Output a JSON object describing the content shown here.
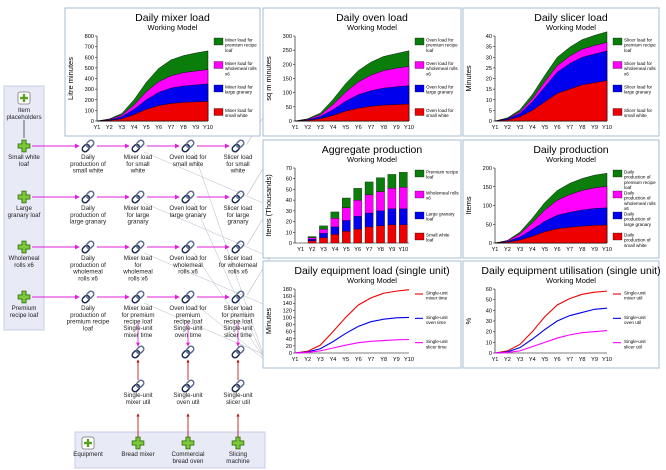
{
  "colors": {
    "green": "#0a7d0a",
    "magenta": "#ff00ff",
    "blue": "#0000ee",
    "red": "#ee0000",
    "link_pink": "#e020d8",
    "link_gray": "#b6b6c8",
    "link_dark": "#222222",
    "panel_border": "#a9bcd2",
    "group_bg": "#e8eaf6"
  },
  "nodes": {
    "item_placeholders": "Item placeholders",
    "equipment": "Equipment",
    "items": [
      {
        "id": "small-white",
        "label": "Small white loaf",
        "daily": "Daily production of small white",
        "mixer": "Mixer load for small white",
        "oven": "Oven load for small white",
        "slicer": "Slicer load for small white"
      },
      {
        "id": "large-granary",
        "label": "Large granary loaf",
        "daily": "Daily production of large granary",
        "mixer": "Mixer load for large granary",
        "oven": "Oven load for large granary",
        "slicer": "Slicer load for large granary"
      },
      {
        "id": "wholemeal",
        "label": "Wholemeal rolls x6",
        "daily": "Daily production of wholemeal rolls x6",
        "mixer": "Mixer load for wholemeal rolls x6",
        "oven": "Oven load for wholemeal rolls x6",
        "slicer": "Slicer load for wholemeal rolls x6"
      },
      {
        "id": "premium",
        "label": "Premium recipe loaf",
        "daily": "Daily production of premium recipe loaf",
        "mixer": "Mixer load for premium recipe loaf",
        "oven": "Oven load for premium recipe loaf",
        "slicer": "Slicer load for premium recipe loaf"
      }
    ],
    "single_time": [
      "Single-unit mixer time",
      "Single-unit oven time",
      "Single-unit slicer time"
    ],
    "single_util": [
      "Single-unit mixer util",
      "Single-unit oven util",
      "Single-unit slicer util"
    ],
    "equipment_items": [
      "Bread mixer",
      "Commercial bread oven",
      "Slicing machine"
    ]
  },
  "chart_data": [
    {
      "id": "mixer",
      "type": "area",
      "title": "Daily mixer load",
      "subtitle": "Working Model",
      "ylabel": "Litre minutes",
      "categories": [
        "Y1",
        "Y2",
        "Y3",
        "Y4",
        "Y5",
        "Y6",
        "Y7",
        "Y8",
        "Y9",
        "Y10"
      ],
      "ylim": [
        0,
        800
      ],
      "yticks": [
        0,
        100,
        200,
        300,
        400,
        500,
        600,
        700,
        800
      ],
      "series": [
        {
          "name": "Mixer load for small white",
          "color": "#ee0000",
          "values": [
            0,
            5,
            20,
            60,
            110,
            145,
            165,
            175,
            180,
            185
          ]
        },
        {
          "name": "Mixer load for large granary",
          "color": "#0000ee",
          "values": [
            0,
            5,
            20,
            50,
            90,
            125,
            145,
            155,
            160,
            165
          ]
        },
        {
          "name": "Mixer load for wholemeal rolls x6",
          "color": "#ff00ff",
          "values": [
            0,
            5,
            15,
            40,
            75,
            100,
            115,
            125,
            130,
            135
          ]
        },
        {
          "name": "Mixer load for premium recipe loaf",
          "color": "#0a7d0a",
          "values": [
            0,
            5,
            15,
            50,
            90,
            125,
            150,
            160,
            170,
            175
          ]
        }
      ]
    },
    {
      "id": "oven",
      "type": "area",
      "title": "Daily oven load",
      "subtitle": "Working Model",
      "ylabel": "sq m minutes",
      "categories": [
        "Y1",
        "Y2",
        "Y3",
        "Y4",
        "Y5",
        "Y6",
        "Y7",
        "Y8",
        "Y9",
        "Y10"
      ],
      "ylim": [
        0,
        300
      ],
      "yticks": [
        0,
        50,
        100,
        150,
        200,
        250,
        300
      ],
      "series": [
        {
          "name": "Oven load for small white",
          "color": "#ee0000",
          "values": [
            0,
            2,
            8,
            20,
            35,
            45,
            52,
            56,
            58,
            60
          ]
        },
        {
          "name": "Oven load for large granary",
          "color": "#0000ee",
          "values": [
            0,
            2,
            8,
            20,
            35,
            48,
            55,
            60,
            63,
            65
          ]
        },
        {
          "name": "Oven load for wholemeal rolls x6",
          "color": "#ff00ff",
          "values": [
            0,
            2,
            6,
            18,
            32,
            45,
            55,
            62,
            65,
            68
          ]
        },
        {
          "name": "Oven load for premium recipe loaf",
          "color": "#0a7d0a",
          "values": [
            0,
            2,
            6,
            18,
            30,
            40,
            46,
            50,
            52,
            55
          ]
        }
      ]
    },
    {
      "id": "slicer",
      "type": "area",
      "title": "Daily slicer load",
      "subtitle": "Working Model",
      "ylabel": "Minutes",
      "categories": [
        "Y1",
        "Y2",
        "Y3",
        "Y4",
        "Y5",
        "Y6",
        "Y7",
        "Y8",
        "Y9",
        "Y10"
      ],
      "ylim": [
        0,
        40
      ],
      "yticks": [
        0,
        5,
        10,
        15,
        20,
        25,
        30,
        35,
        40
      ],
      "series": [
        {
          "name": "Slicer load for small white",
          "color": "#ee0000",
          "values": [
            0,
            0.5,
            2,
            5,
            9,
            13,
            15,
            17,
            18,
            19
          ]
        },
        {
          "name": "Slicer load for large granary",
          "color": "#0000ee",
          "values": [
            0,
            0.5,
            1.5,
            4,
            7,
            10,
            12,
            13,
            13.5,
            14
          ]
        },
        {
          "name": "Slicer load for wholemeal rolls x6",
          "color": "#ff00ff",
          "values": [
            0,
            0.2,
            0.8,
            1.5,
            2.5,
            3,
            3.5,
            3.8,
            4,
            4
          ]
        },
        {
          "name": "Slicer load for premium recipe loaf",
          "color": "#0a7d0a",
          "values": [
            0,
            0.3,
            1,
            2,
            3,
            4,
            4.2,
            4.5,
            4.8,
            5
          ]
        }
      ]
    },
    {
      "id": "aggregate",
      "type": "bar",
      "title": "Aggregate production",
      "subtitle": "Working Model",
      "ylabel": "Items  (Thousands)",
      "categories": [
        "Y1",
        "Y2",
        "Y3",
        "Y4",
        "Y5",
        "Y6",
        "Y7",
        "Y8",
        "Y9",
        "Y10"
      ],
      "ylim": [
        0,
        70
      ],
      "yticks": [
        0,
        10,
        20,
        30,
        40,
        50,
        60,
        70
      ],
      "series": [
        {
          "name": "Small white loaf",
          "color": "#ee0000",
          "values": [
            0,
            2,
            5,
            8,
            11,
            13,
            15,
            16,
            17,
            17
          ]
        },
        {
          "name": "Large granary loaf",
          "color": "#0000ee",
          "values": [
            0,
            1.5,
            4,
            7,
            10,
            12,
            13,
            14,
            15,
            15
          ]
        },
        {
          "name": "Wholemeal rolls x6",
          "color": "#ff00ff",
          "values": [
            0,
            1.5,
            4,
            8,
            12,
            15,
            17,
            18,
            19,
            20
          ]
        },
        {
          "name": "Premium recipe loaf",
          "color": "#0a7d0a",
          "values": [
            0,
            1,
            3,
            6,
            9,
            11,
            12,
            13,
            13,
            14
          ]
        }
      ]
    },
    {
      "id": "production",
      "type": "area",
      "title": "Daily production",
      "subtitle": "Working Model",
      "ylabel": "Items",
      "categories": [
        "Y1",
        "Y2",
        "Y3",
        "Y4",
        "Y5",
        "Y6",
        "Y7",
        "Y8",
        "Y9",
        "Y10"
      ],
      "ylim": [
        0,
        200
      ],
      "yticks": [
        0,
        50,
        100,
        150,
        200
      ],
      "series": [
        {
          "name": "Daily production of small white",
          "color": "#ee0000",
          "values": [
            0,
            2,
            8,
            18,
            30,
            38,
            42,
            45,
            47,
            48
          ]
        },
        {
          "name": "Daily production of large granary",
          "color": "#0000ee",
          "values": [
            0,
            2,
            8,
            18,
            28,
            36,
            40,
            43,
            45,
            46
          ]
        },
        {
          "name": "Daily production of wholemeal rolls x6",
          "color": "#ff00ff",
          "values": [
            0,
            2,
            8,
            18,
            30,
            40,
            47,
            52,
            55,
            57
          ]
        },
        {
          "name": "Daily production of premium recipe loaf",
          "color": "#0a7d0a",
          "values": [
            0,
            1,
            5,
            12,
            20,
            26,
            30,
            32,
            34,
            35
          ]
        }
      ]
    },
    {
      "id": "equip-load",
      "type": "line",
      "title": "Daily equipment load (single unit)",
      "subtitle": "Working Model",
      "ylabel": "Minutes",
      "categories": [
        "Y1",
        "Y2",
        "Y3",
        "Y4",
        "Y5",
        "Y6",
        "Y7",
        "Y8",
        "Y9",
        "Y10"
      ],
      "ylim": [
        0,
        180
      ],
      "yticks": [
        0,
        20,
        40,
        60,
        80,
        100,
        120,
        140,
        160,
        180
      ],
      "series": [
        {
          "name": "Single-unit mixer time",
          "color": "#ee0000",
          "values": [
            0,
            5,
            22,
            60,
            100,
            135,
            155,
            168,
            174,
            178
          ]
        },
        {
          "name": "Single-unit oven time",
          "color": "#0000ee",
          "values": [
            0,
            3,
            12,
            32,
            55,
            75,
            88,
            95,
            99,
            100
          ]
        },
        {
          "name": "Single-unit slicer time",
          "color": "#ff00ff",
          "values": [
            0,
            2,
            6,
            14,
            22,
            29,
            33,
            35,
            37,
            38
          ]
        }
      ]
    },
    {
      "id": "equip-util",
      "type": "line",
      "title": "Daily equipment utilisation (single unit)",
      "subtitle": "Working Model",
      "ylabel": "%",
      "categories": [
        "Y1",
        "Y2",
        "Y3",
        "Y4",
        "Y5",
        "Y6",
        "Y7",
        "Y8",
        "Y9",
        "Y10"
      ],
      "ylim": [
        0,
        60
      ],
      "yticks": [
        0,
        10,
        20,
        30,
        40,
        50,
        60
      ],
      "series": [
        {
          "name": "Single-unit mixer util",
          "color": "#ee0000",
          "values": [
            0,
            2,
            8,
            20,
            34,
            45,
            51,
            55,
            57,
            58
          ]
        },
        {
          "name": "Single-unit oven util",
          "color": "#0000ee",
          "values": [
            0,
            1,
            5,
            13,
            22,
            30,
            35,
            38,
            41,
            42
          ]
        },
        {
          "name": "Single-unit slicer util",
          "color": "#ff00ff",
          "values": [
            0,
            0.5,
            2,
            6,
            10,
            14,
            17,
            19,
            20,
            21
          ]
        }
      ]
    }
  ]
}
